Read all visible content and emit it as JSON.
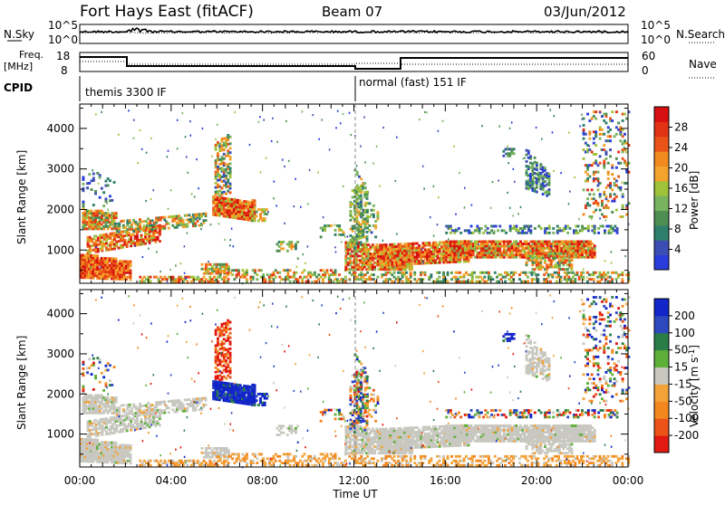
{
  "header": {
    "station": "Fort Hays East (fitACF)",
    "beam": "Beam 07",
    "date": "03/Jun/2012"
  },
  "noise_panel": {
    "left_label": "N.Sky",
    "right_label": "N.Search",
    "left_ticks": [
      "10^5",
      "10^0"
    ],
    "right_ticks": [
      "10^5",
      "10^0"
    ]
  },
  "freq_panel": {
    "left_label_line1": "Freq.",
    "left_label_line2": "[MHz]",
    "left_ticks": [
      "18",
      "8"
    ],
    "right_label": "Nave",
    "right_ticks": [
      "60",
      "0"
    ]
  },
  "cpid_panel": {
    "label": "CPID",
    "modes": [
      "themis 3300 IF",
      "normal (fast) 151 IF"
    ]
  },
  "chart_data": [
    {
      "type": "heatmap",
      "name": "power",
      "ylabel": "Slant Range [km]",
      "xlabel": "",
      "ylim": [
        180,
        4600
      ],
      "y_ticks": [
        "1000",
        "2000",
        "3000",
        "4000"
      ],
      "colorbar_label": "Power [dB]",
      "colorbar_ticks": [
        "28",
        "24",
        "20",
        "16",
        "12",
        "8",
        "4"
      ],
      "colors": [
        "#2a3cdc",
        "#3c4eb4",
        "#2e7f6b",
        "#4e8e52",
        "#79b35f",
        "#9fc23a",
        "#f4a32c",
        "#f08a1c",
        "#ea5418",
        "#e13214",
        "#d61010"
      ]
    },
    {
      "type": "heatmap",
      "name": "velocity",
      "ylabel": "Slant Range [km]",
      "xlabel": "Time UT",
      "x_ticks": [
        "00:00",
        "04:00",
        "08:00",
        "12:00",
        "16:00",
        "20:00",
        "00:00"
      ],
      "ylim": [
        180,
        4600
      ],
      "y_ticks": [
        "1000",
        "2000",
        "3000",
        "4000"
      ],
      "colorbar_label": "Velocity [m s-1]",
      "colorbar_ticks": [
        "200",
        "100",
        "50",
        "15",
        "-15",
        "-50",
        "-100",
        "-200"
      ],
      "colors": [
        "#1225c8",
        "#2d49c0",
        "#2a7d46",
        "#5daf38",
        "#c8c8c0",
        "#f3a23a",
        "#f2871e",
        "#ec5318",
        "#e01a10"
      ],
      "ground_scatter_color": "#c8c8c0"
    }
  ]
}
